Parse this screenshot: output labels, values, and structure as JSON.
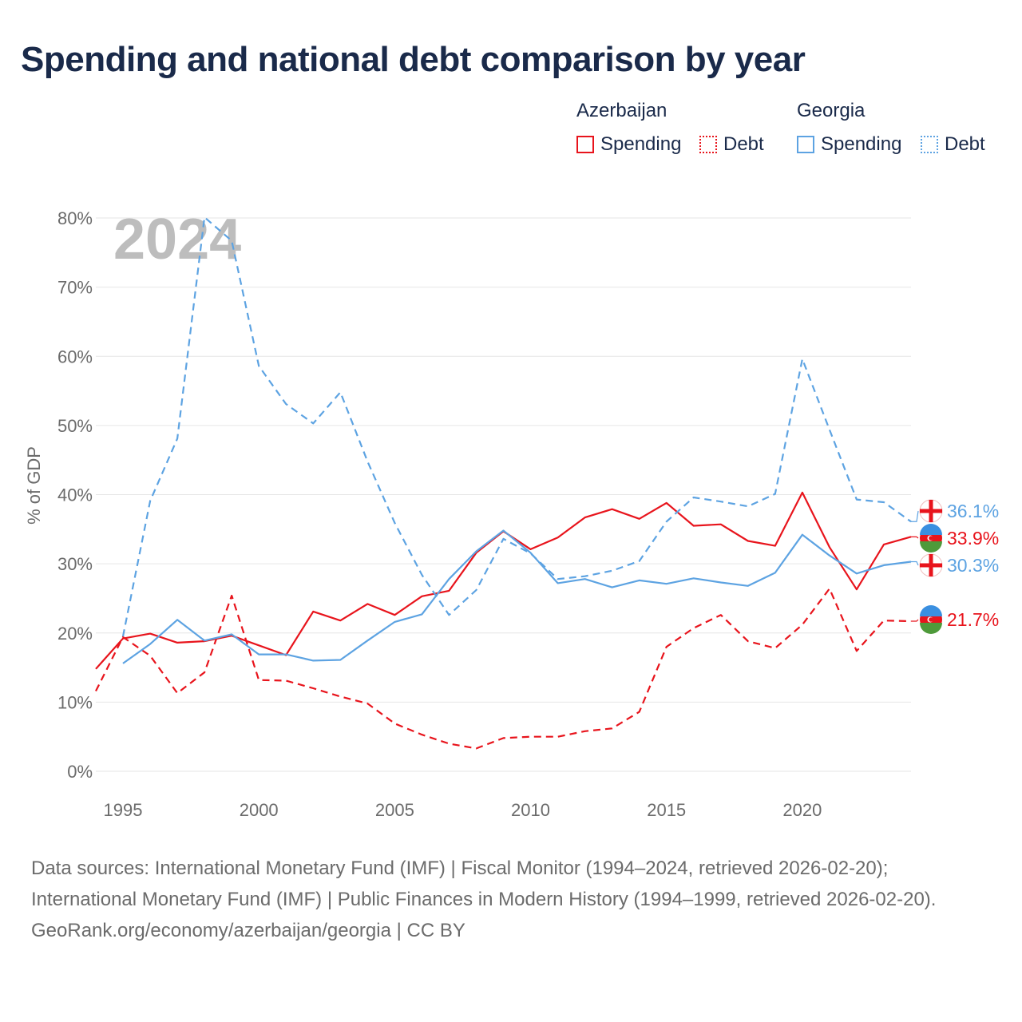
{
  "title": "Spending and national debt comparison by year",
  "legend": {
    "groups": [
      {
        "name": "Azerbaijan",
        "color": "#e8141c",
        "items": [
          "Spending",
          "Debt"
        ]
      },
      {
        "name": "Georgia",
        "color": "#5da3e2",
        "items": [
          "Spending",
          "Debt"
        ]
      }
    ]
  },
  "chart_data": {
    "type": "line",
    "year_watermark": "2024",
    "ylabel": "% of GDP",
    "ylim": [
      0,
      80
    ],
    "xlim": [
      1994,
      2024
    ],
    "y_ticks": [
      "0%",
      "10%",
      "20%",
      "30%",
      "40%",
      "50%",
      "60%",
      "70%",
      "80%"
    ],
    "x_ticks": [
      "1995",
      "2000",
      "2005",
      "2010",
      "2015",
      "2020"
    ],
    "series": [
      {
        "name": "Azerbaijan Spending",
        "country": "Azerbaijan",
        "color": "#e8141c",
        "dash": false,
        "x": [
          1994,
          1995,
          1996,
          1997,
          1998,
          1999,
          2000,
          2001,
          2002,
          2003,
          2004,
          2005,
          2006,
          2007,
          2008,
          2009,
          2010,
          2011,
          2012,
          2013,
          2014,
          2015,
          2016,
          2017,
          2018,
          2019,
          2020,
          2021,
          2022,
          2023,
          2024
        ],
        "values": [
          14.8,
          19.2,
          19.9,
          18.6,
          18.8,
          19.6,
          18.2,
          16.8,
          23.1,
          21.8,
          24.2,
          22.6,
          25.3,
          26.1,
          31.6,
          34.7,
          32.1,
          33.8,
          36.7,
          37.9,
          36.5,
          38.8,
          35.5,
          35.7,
          33.3,
          32.6,
          40.3,
          32.4,
          26.3,
          32.8,
          33.9
        ]
      },
      {
        "name": "Azerbaijan Debt",
        "country": "Azerbaijan",
        "color": "#e8141c",
        "dash": true,
        "x": [
          1994,
          1995,
          1996,
          1997,
          1998,
          1999,
          2000,
          2001,
          2002,
          2003,
          2004,
          2005,
          2006,
          2007,
          2008,
          2009,
          2010,
          2011,
          2012,
          2013,
          2014,
          2015,
          2016,
          2017,
          2018,
          2019,
          2020,
          2021,
          2022,
          2023,
          2024
        ],
        "values": [
          11.6,
          19.4,
          16.7,
          11.3,
          14.3,
          25.4,
          13.2,
          13.1,
          12.0,
          10.8,
          9.8,
          6.9,
          5.3,
          4.0,
          3.3,
          4.8,
          5.0,
          5.0,
          5.8,
          6.2,
          8.6,
          18.0,
          20.7,
          22.6,
          18.8,
          17.8,
          21.2,
          26.4,
          17.4,
          21.8,
          21.7
        ]
      },
      {
        "name": "Georgia Spending",
        "country": "Georgia",
        "color": "#5da3e2",
        "dash": false,
        "x": [
          1995,
          1996,
          1997,
          1998,
          1999,
          2000,
          2001,
          2002,
          2003,
          2004,
          2005,
          2006,
          2007,
          2008,
          2009,
          2010,
          2011,
          2012,
          2013,
          2014,
          2015,
          2016,
          2017,
          2018,
          2019,
          2020,
          2021,
          2022,
          2023,
          2024
        ],
        "values": [
          15.6,
          18.4,
          21.9,
          18.9,
          19.8,
          16.9,
          16.9,
          16.0,
          16.1,
          18.9,
          21.6,
          22.7,
          27.8,
          31.8,
          34.8,
          31.6,
          27.2,
          27.8,
          26.6,
          27.6,
          27.1,
          27.9,
          27.3,
          26.8,
          28.7,
          34.2,
          31.2,
          28.6,
          29.8,
          30.3
        ]
      },
      {
        "name": "Georgia Debt",
        "country": "Georgia",
        "color": "#5da3e2",
        "dash": true,
        "x": [
          1995,
          1996,
          1997,
          1998,
          1999,
          2000,
          2001,
          2002,
          2003,
          2004,
          2005,
          2006,
          2007,
          2008,
          2009,
          2010,
          2011,
          2012,
          2013,
          2014,
          2015,
          2016,
          2017,
          2018,
          2019,
          2020,
          2021,
          2022,
          2023,
          2024
        ],
        "values": [
          19.5,
          39.1,
          48.1,
          80.1,
          76.7,
          58.6,
          53.1,
          50.3,
          54.8,
          44.8,
          35.9,
          28.4,
          22.6,
          26.2,
          33.6,
          31.5,
          27.8,
          28.2,
          29.0,
          30.4,
          36.1,
          39.6,
          39.0,
          38.3,
          40.1,
          59.6,
          49.4,
          39.3,
          38.9,
          36.1
        ]
      }
    ],
    "end_labels": [
      {
        "text": "36.1%",
        "country": "Georgia",
        "color": "#5da3e2",
        "value": 36.1
      },
      {
        "text": "33.9%",
        "country": "Azerbaijan",
        "color": "#e8141c",
        "value": 33.9
      },
      {
        "text": "30.3%",
        "country": "Georgia",
        "color": "#5da3e2",
        "value": 30.3
      },
      {
        "text": "21.7%",
        "country": "Azerbaijan",
        "color": "#e8141c",
        "value": 21.7
      }
    ]
  },
  "footer": {
    "sources": "Data sources: International Monetary Fund (IMF) | Fiscal Monitor (1994–2024, retrieved 2026-02-20); International Monetary Fund (IMF) | Public Finances in Modern History (1994–1999, retrieved 2026-02-20).",
    "credit": "GeoRank.org/economy/azerbaijan/georgia | CC BY"
  }
}
